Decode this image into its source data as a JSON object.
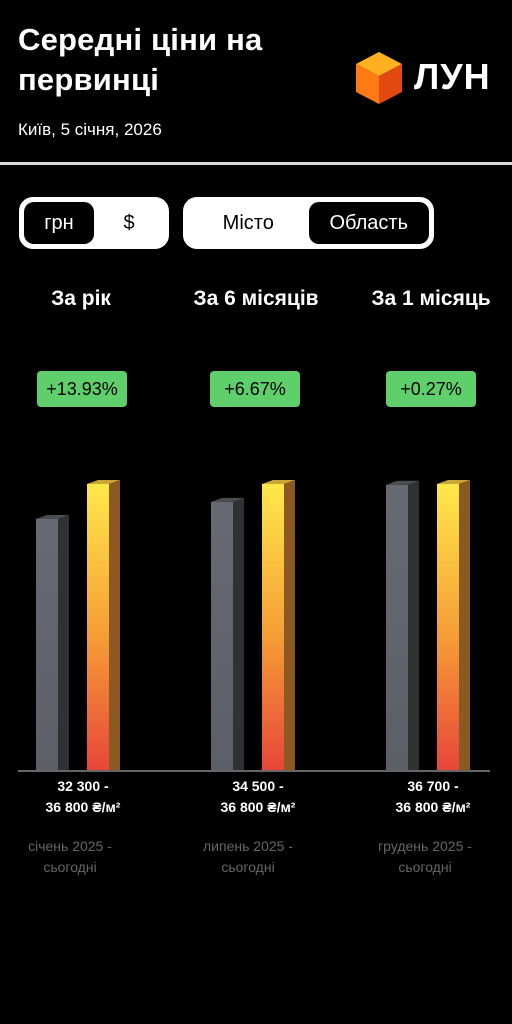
{
  "header": {
    "title": "Середні ціни на первинці",
    "subtitle": "Київ, 5 січня, 2026",
    "logo_text": "ЛУН"
  },
  "currency_toggle": {
    "options": [
      "грн",
      "$"
    ],
    "selected": "грн"
  },
  "region_toggle": {
    "options": [
      "Місто",
      "Область"
    ],
    "selected": "Область"
  },
  "colors": {
    "badge": "#5fcf6b",
    "old_bar": "#5b5f66",
    "new_bar_top": "#ffe84a",
    "new_bar_bottom": "#e8463a"
  },
  "periods": [
    {
      "label": "За рік",
      "change": "+13.93%",
      "range_line1": "32 300 -",
      "range_line2": "36 800 ₴/м²",
      "dates_line1": "січень 2025 -",
      "dates_line2": "сьогодні"
    },
    {
      "label": "За 6 місяців",
      "change": "+6.67%",
      "range_line1": "34 500 -",
      "range_line2": "36 800 ₴/м²",
      "dates_line1": "липень 2025 -",
      "dates_line2": "сьогодні"
    },
    {
      "label": "За 1 місяць",
      "change": "+0.27%",
      "range_line1": "36 700 -",
      "range_line2": "36 800 ₴/м²",
      "dates_line1": "грудень 2025 -",
      "dates_line2": "сьогодні"
    }
  ],
  "chart_data": {
    "type": "bar",
    "categories": [
      "За рік",
      "За 6 місяців",
      "За 1 місяць"
    ],
    "series": [
      {
        "values": [
          32300,
          34500,
          36700
        ]
      },
      {
        "values": [
          36800,
          36800,
          36800
        ]
      }
    ],
    "ylim": [
      0,
      36800
    ],
    "grid": false
  }
}
